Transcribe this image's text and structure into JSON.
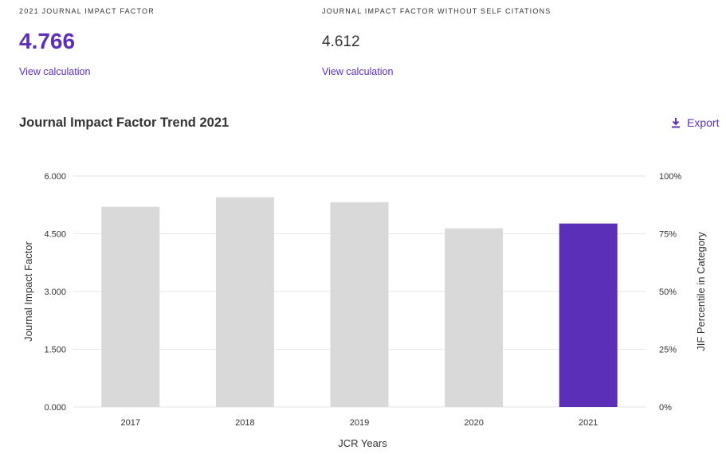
{
  "metrics": {
    "jif": {
      "label": "2021 JOURNAL IMPACT FACTOR",
      "value": "4.766",
      "link": "View calculation"
    },
    "jif_no_self": {
      "label": "JOURNAL IMPACT FACTOR WITHOUT SELF CITATIONS",
      "value": "4.612",
      "link": "View calculation"
    }
  },
  "chart_section": {
    "title": "Journal Impact Factor Trend 2021",
    "export_label": "Export"
  },
  "colors": {
    "accent": "#5c2fb8",
    "bar_default": "#d9d9d9",
    "grid": "#e6e6e6",
    "text": "#333333"
  },
  "chart_data": {
    "type": "bar",
    "categories": [
      "2017",
      "2018",
      "2019",
      "2020",
      "2021"
    ],
    "values": [
      5.2,
      5.45,
      5.32,
      4.64,
      4.766
    ],
    "highlight_index": 4,
    "xlabel": "JCR Years",
    "ylabel": "Journal Impact Factor",
    "y2label": "JIF Percentile in Category",
    "ylim": [
      0,
      6
    ],
    "yticks": [
      "0.000",
      "1.500",
      "3.000",
      "4.500",
      "6.000"
    ],
    "y2ticks": [
      "0%",
      "25%",
      "50%",
      "75%",
      "100%"
    ],
    "grid": true
  }
}
